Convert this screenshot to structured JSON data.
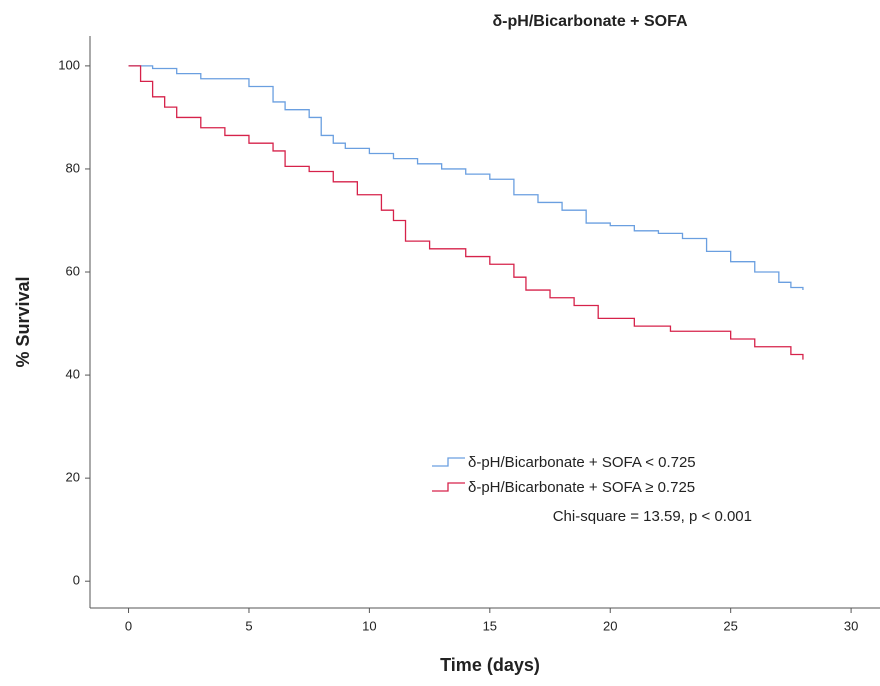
{
  "chart_data": {
    "type": "line",
    "drawstyle": "steps-post",
    "title": "δ-pH/Bicarbonate + SOFA",
    "xlabel": "Time (days)",
    "ylabel": "% Survival",
    "xlim": [
      -1.6,
      31.2
    ],
    "ylim": [
      -5.2,
      105.8
    ],
    "xticks": [
      0,
      5,
      10,
      15,
      20,
      25,
      30
    ],
    "yticks": [
      0,
      20,
      40,
      60,
      80,
      100
    ],
    "annotation": "Chi-square = 13.59, p < 0.001",
    "series": [
      {
        "name": "δ-pH/Bicarbonate + SOFA < 0.725",
        "color": "#6a9fe0",
        "x": [
          0,
          1,
          2,
          3,
          5,
          6,
          6.5,
          7.5,
          8,
          8.5,
          9,
          10,
          11,
          12,
          13,
          14,
          15,
          16,
          17,
          18,
          19,
          20,
          21,
          22,
          23,
          24,
          25,
          26,
          27,
          27.5,
          28
        ],
        "values": [
          100,
          99.5,
          98.5,
          97.5,
          96,
          93,
          91.5,
          90,
          86.5,
          85,
          84,
          83,
          82,
          81,
          80,
          79,
          78,
          75,
          73.5,
          72,
          69.5,
          69,
          68,
          67.5,
          66.5,
          64,
          62,
          60,
          58,
          57,
          56.5
        ]
      },
      {
        "name": "δ-pH/Bicarbonate + SOFA ≥ 0.725",
        "color": "#d6224a",
        "x": [
          0,
          0.5,
          1,
          1.5,
          2,
          3,
          4,
          5,
          6,
          6.5,
          7.5,
          8.5,
          9.5,
          10.5,
          11,
          11.5,
          12.5,
          14,
          15,
          16,
          16.5,
          17.5,
          18.5,
          19.5,
          21,
          22.5,
          25,
          26,
          27.5,
          28
        ],
        "values": [
          100,
          97,
          94,
          92,
          90,
          88,
          86.5,
          85,
          83.5,
          80.5,
          79.5,
          77.5,
          75,
          72,
          70,
          66,
          64.5,
          63,
          61.5,
          59,
          56.5,
          55,
          53.5,
          51,
          49.5,
          48.5,
          47,
          45.5,
          44,
          43
        ]
      }
    ]
  }
}
